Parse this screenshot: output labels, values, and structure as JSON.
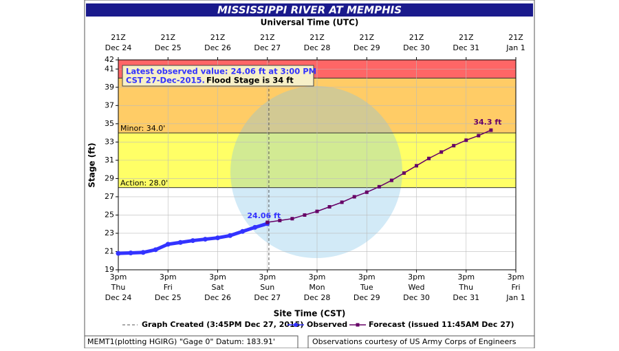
{
  "chart_data": {
    "type": "line",
    "title": "MISSISSIPPI RIVER AT MEMPHIS",
    "top_axis_title": "Universal Time (UTC)",
    "x_label": "Site Time (CST)",
    "y_label": "Stage (ft)",
    "xlim": [
      0,
      8
    ],
    "ylim": [
      19,
      42
    ],
    "yticks": [
      19,
      21,
      23,
      25,
      27,
      29,
      31,
      33,
      35,
      37,
      39,
      41,
      42
    ],
    "grid": true,
    "xticks": [
      {
        "value": 0,
        "label": "3pm",
        "day": "Thu",
        "date": "Dec 24"
      },
      {
        "value": 1,
        "label": "3pm",
        "day": "Fri",
        "date": "Dec 25"
      },
      {
        "value": 2,
        "label": "3pm",
        "day": "Sat",
        "date": "Dec 26"
      },
      {
        "value": 3,
        "label": "3pm",
        "day": "Sun",
        "date": "Dec 27"
      },
      {
        "value": 4,
        "label": "3pm",
        "day": "Mon",
        "date": "Dec 28"
      },
      {
        "value": 5,
        "label": "3pm",
        "day": "Tue",
        "date": "Dec 29"
      },
      {
        "value": 6,
        "label": "3pm",
        "day": "Wed",
        "date": "Dec 30"
      },
      {
        "value": 7,
        "label": "3pm",
        "day": "Thu",
        "date": "Dec 31"
      },
      {
        "value": 8,
        "label": "3pm",
        "day": "Fri",
        "date": "Jan 1"
      }
    ],
    "x2ticks": [
      {
        "value": 0,
        "label": "21Z",
        "date": "Dec 24"
      },
      {
        "value": 1,
        "label": "21Z",
        "date": "Dec 25"
      },
      {
        "value": 2,
        "label": "21Z",
        "date": "Dec 26"
      },
      {
        "value": 3,
        "label": "21Z",
        "date": "Dec 27"
      },
      {
        "value": 4,
        "label": "21Z",
        "date": "Dec 28"
      },
      {
        "value": 5,
        "label": "21Z",
        "date": "Dec 29"
      },
      {
        "value": 6,
        "label": "21Z",
        "date": "Dec 30"
      },
      {
        "value": 7,
        "label": "21Z",
        "date": "Dec 31"
      },
      {
        "value": 8,
        "label": "21Z",
        "date": "Jan  1"
      }
    ],
    "bands": [
      {
        "from": 28,
        "to": 34,
        "color": "#ffff66",
        "label": "Action: 28.0'"
      },
      {
        "from": 34,
        "to": 40,
        "color": "#ffcc66",
        "label": "Minor: 34.0'"
      },
      {
        "from": 40,
        "to": 42,
        "color": "#ff6666"
      }
    ],
    "created_x": 3.03,
    "series": [
      {
        "name": "Observed",
        "color": "#3333ff",
        "marker": "circle",
        "x": [
          0,
          0.25,
          0.5,
          0.75,
          1,
          1.25,
          1.5,
          1.75,
          2,
          2.25,
          2.5,
          2.75,
          3
        ],
        "values": [
          20.8,
          20.85,
          20.9,
          21.2,
          21.8,
          22.0,
          22.2,
          22.35,
          22.5,
          22.75,
          23.2,
          23.65,
          24.06
        ],
        "end_label": "24.06 ft"
      },
      {
        "name": "Forecast (issued 11:45AM Dec 27)",
        "color": "#660066",
        "marker": "square",
        "x": [
          3,
          3.25,
          3.5,
          3.75,
          4,
          4.25,
          4.5,
          4.75,
          5,
          5.25,
          5.5,
          5.75,
          6,
          6.25,
          6.5,
          6.75,
          7,
          7.25,
          7.5
        ],
        "values": [
          24.2,
          24.4,
          24.6,
          25.0,
          25.4,
          25.9,
          26.4,
          27.0,
          27.5,
          28.1,
          28.8,
          29.6,
          30.4,
          31.2,
          31.9,
          32.6,
          33.2,
          33.7,
          34.3
        ],
        "end_label": "34.3 ft"
      }
    ],
    "created_legend": "Graph Created (3:45PM Dec 27, 2015)",
    "info_box": {
      "line1": "Latest observed value: 24.06 ft at 3:00 PM",
      "line2a": "CST 27-Dec-2015.",
      "line2b": "Flood Stage is 34 ft"
    },
    "footer_left": "MEMT1(plotting HGIRG) \"Gage 0\" Datum: 183.91'",
    "footer_right": "Observations courtesy of US Army Corps of Engineers"
  }
}
